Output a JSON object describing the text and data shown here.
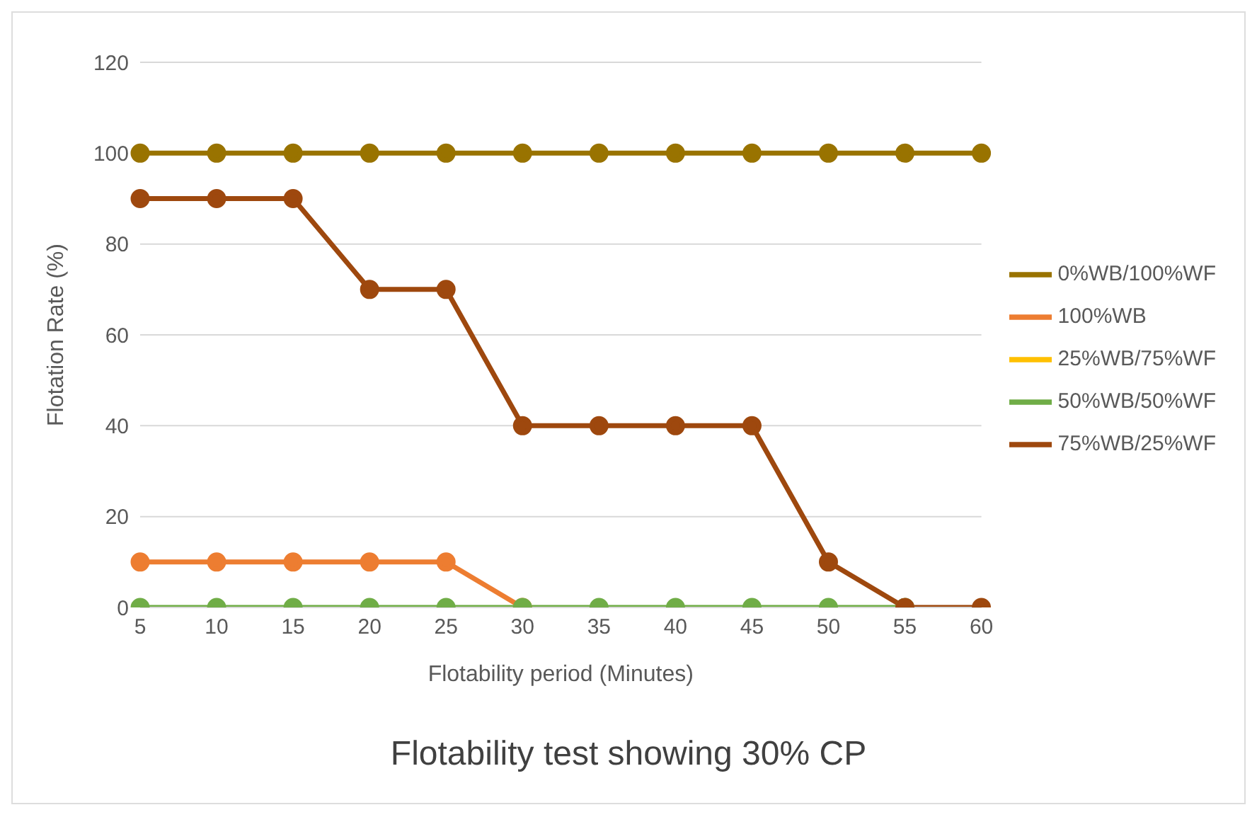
{
  "chart_data": {
    "type": "line",
    "title": "Flotability test showing 30% CP",
    "xlabel": "Flotability period (Minutes)",
    "ylabel": "Flotation Rate (%)",
    "categories": [
      "5",
      "10",
      "15",
      "20",
      "25",
      "30",
      "35",
      "40",
      "45",
      "50",
      "55",
      "60"
    ],
    "series": [
      {
        "name": "100%WB",
        "color": "#ed7d31",
        "values": [
          10,
          10,
          10,
          10,
          10,
          0,
          null,
          null,
          null,
          null,
          null,
          null
        ]
      },
      {
        "name": "25%WB/75%WF",
        "color": "#ffc000",
        "values": [
          null,
          null,
          null,
          null,
          null,
          null,
          null,
          null,
          null,
          null,
          null,
          null
        ]
      },
      {
        "name": "50%WB/50%WF",
        "color": "#70ad47",
        "values": [
          0,
          0,
          0,
          0,
          0,
          0,
          0,
          0,
          0,
          0,
          0,
          null
        ]
      },
      {
        "name": "75%WB/25%WF",
        "color": "#9e480e",
        "values": [
          90,
          90,
          90,
          70,
          70,
          40,
          40,
          40,
          40,
          10,
          0,
          0
        ]
      },
      {
        "name": "0%WB/100%WF",
        "color": "#997300",
        "values": [
          100,
          100,
          100,
          100,
          100,
          100,
          100,
          100,
          100,
          100,
          100,
          100
        ]
      }
    ],
    "ylim": [
      0,
      120
    ],
    "yticks": [
      0,
      20,
      40,
      60,
      80,
      100,
      120
    ],
    "grid": "y",
    "legend": "right",
    "marker": "circle",
    "line_style": "solid"
  }
}
